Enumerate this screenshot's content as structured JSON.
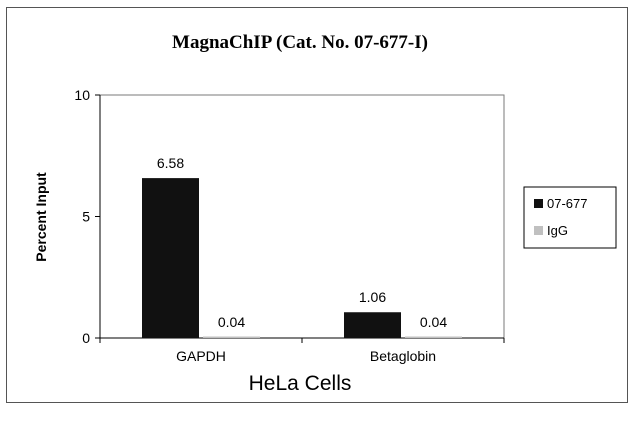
{
  "chart_data": {
    "type": "bar",
    "title": "MagnaChIP (Cat. No. 07-677-I)",
    "xlabel": "HeLa Cells",
    "ylabel": "Percent Input",
    "categories": [
      "GAPDH",
      "Betaglobin"
    ],
    "series": [
      {
        "name": "07-677",
        "values": [
          6.58,
          1.06
        ],
        "labels": [
          "6.58",
          "1.06"
        ],
        "color": "#111111"
      },
      {
        "name": "IgG",
        "values": [
          0.04,
          0.04
        ],
        "labels": [
          "0.04",
          "0.04"
        ],
        "color": "#c0c0c0"
      }
    ],
    "ylim": [
      0,
      10
    ],
    "yticks": [
      0,
      5,
      10
    ],
    "grid": false,
    "legend_position": "right"
  }
}
